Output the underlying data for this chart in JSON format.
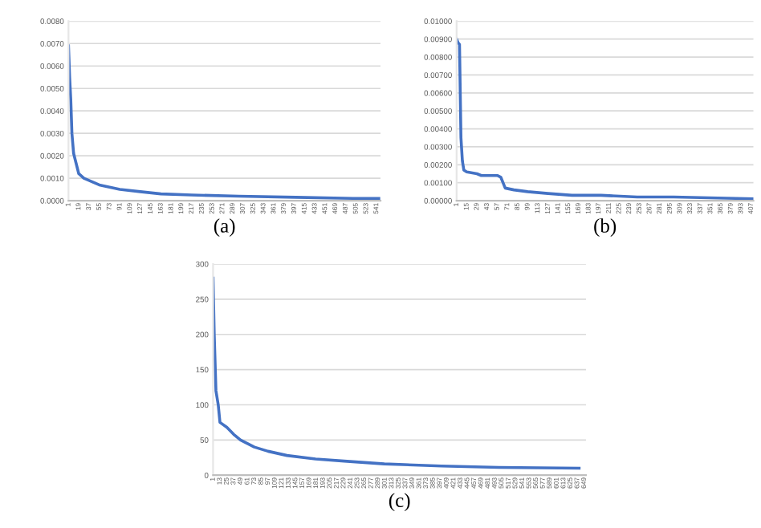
{
  "chart_data": [
    {
      "type": "line",
      "xlabel": "(a)",
      "grid": "y",
      "legend": false,
      "marker": "none",
      "line_style": "solid",
      "xlim": [
        1,
        548
      ],
      "xticks": [
        1,
        19,
        37,
        55,
        73,
        91,
        109,
        127,
        145,
        163,
        181,
        199,
        217,
        235,
        253,
        271,
        289,
        307,
        325,
        343,
        361,
        379,
        397,
        415,
        433,
        451,
        469,
        487,
        505,
        523,
        541
      ],
      "ylim": [
        0,
        0.008
      ],
      "yticks": [
        {
          "value": 0,
          "label": "0.0000"
        },
        {
          "value": 0.001,
          "label": "0.0010"
        },
        {
          "value": 0.002,
          "label": "0.0020"
        },
        {
          "value": 0.003,
          "label": "0.0030"
        },
        {
          "value": 0.004,
          "label": "0.0040"
        },
        {
          "value": 0.005,
          "label": "0.0050"
        },
        {
          "value": 0.006,
          "label": "0.0060"
        },
        {
          "value": 0.007,
          "label": "0.0070"
        },
        {
          "value": 0.008,
          "label": "0.0080"
        }
      ],
      "series": [
        {
          "color": "#4472c4",
          "x": [
            1,
            3,
            5,
            7,
            10,
            14,
            19,
            28,
            37,
            55,
            73,
            91,
            127,
            163,
            217,
            300,
            400,
            500,
            545
          ],
          "values": [
            0.0069,
            0.0055,
            0.0045,
            0.003,
            0.0021,
            0.0017,
            0.0012,
            0.001,
            0.0009,
            0.0007,
            0.0006,
            0.0005,
            0.0004,
            0.0003,
            0.00025,
            0.0002,
            0.00015,
            0.0001,
            0.0001
          ]
        }
      ]
    },
    {
      "type": "line",
      "xlabel": "(b)",
      "grid": "y",
      "legend": false,
      "marker": "none",
      "line_style": "solid",
      "xlim": [
        1,
        410
      ],
      "xticks": [
        1,
        15,
        29,
        43,
        57,
        71,
        85,
        99,
        113,
        127,
        141,
        155,
        169,
        183,
        197,
        211,
        225,
        239,
        253,
        267,
        281,
        295,
        309,
        323,
        337,
        351,
        365,
        379,
        393,
        407
      ],
      "ylim": [
        0,
        0.01
      ],
      "yticks": [
        {
          "value": 0,
          "label": "0.00000"
        },
        {
          "value": 0.001,
          "label": "0.00100"
        },
        {
          "value": 0.002,
          "label": "0.00200"
        },
        {
          "value": 0.003,
          "label": "0.00300"
        },
        {
          "value": 0.004,
          "label": "0.00400"
        },
        {
          "value": 0.005,
          "label": "0.00500"
        },
        {
          "value": 0.006,
          "label": "0.00600"
        },
        {
          "value": 0.007,
          "label": "0.00700"
        },
        {
          "value": 0.008,
          "label": "0.00800"
        },
        {
          "value": 0.009,
          "label": "0.00900"
        },
        {
          "value": 0.01,
          "label": "0.01000"
        }
      ],
      "series": [
        {
          "color": "#4472c4",
          "x": [
            1,
            3,
            5,
            7,
            9,
            11,
            15,
            29,
            35,
            57,
            62,
            68,
            80,
            99,
            127,
            160,
            200,
            250,
            300,
            410
          ],
          "values": [
            0.009,
            0.0088,
            0.0087,
            0.0035,
            0.0022,
            0.0017,
            0.0016,
            0.0015,
            0.0014,
            0.0014,
            0.0013,
            0.0007,
            0.0006,
            0.0005,
            0.0004,
            0.0003,
            0.0003,
            0.0002,
            0.0002,
            0.0001
          ]
        }
      ]
    },
    {
      "type": "line",
      "xlabel": "(c)",
      "grid": "y",
      "legend": false,
      "marker": "none",
      "line_style": "solid",
      "xlim": [
        1,
        652
      ],
      "xticks": [
        1,
        13,
        25,
        37,
        49,
        61,
        73,
        85,
        97,
        109,
        121,
        133,
        145,
        157,
        169,
        181,
        193,
        205,
        217,
        229,
        241,
        253,
        265,
        277,
        289,
        301,
        313,
        325,
        337,
        349,
        361,
        373,
        385,
        397,
        409,
        421,
        433,
        445,
        457,
        469,
        481,
        493,
        505,
        517,
        529,
        541,
        553,
        565,
        577,
        589,
        601,
        613,
        625,
        637,
        649
      ],
      "ylim": [
        0,
        300
      ],
      "yticks": [
        0,
        50,
        100,
        150,
        200,
        250,
        300
      ],
      "series": [
        {
          "color": "#4472c4",
          "x": [
            1,
            3,
            6,
            10,
            13,
            25,
            37,
            49,
            73,
            97,
            130,
            180,
            230,
            300,
            400,
            500,
            640
          ],
          "values": [
            280,
            200,
            120,
            100,
            75,
            68,
            58,
            50,
            40,
            34,
            28,
            23,
            20,
            16,
            13,
            11,
            10
          ]
        }
      ]
    }
  ]
}
